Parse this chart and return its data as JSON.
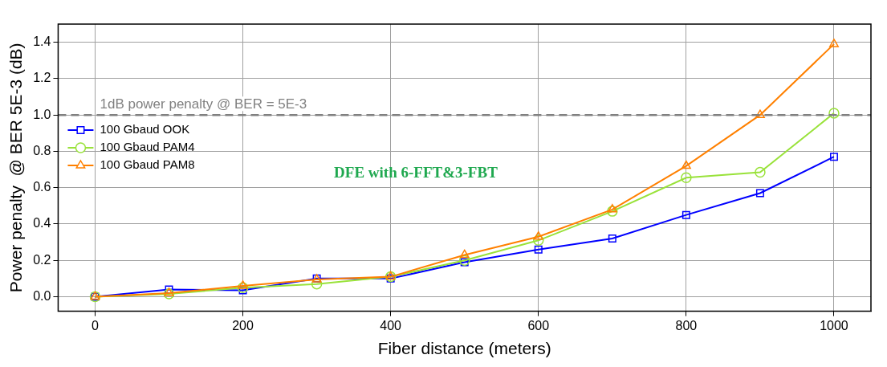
{
  "chart_data": {
    "type": "line",
    "xlabel": "Fiber distance (meters)",
    "ylabel": "Power penalty  @ BER 5E-3 (dB)",
    "x": [
      0,
      100,
      200,
      300,
      400,
      500,
      600,
      700,
      800,
      900,
      1000
    ],
    "series": [
      {
        "name": "100 Gbaud OOK",
        "color": "#0000ff",
        "marker": "square",
        "values": [
          0,
          0.04,
          0.035,
          0.1,
          0.1,
          0.19,
          0.26,
          0.32,
          0.45,
          0.57,
          0.77
        ]
      },
      {
        "name": "100 Gbaud PAM4",
        "color": "#99e23a",
        "marker": "circle",
        "values": [
          0,
          0.015,
          0.05,
          0.07,
          0.11,
          0.2,
          0.31,
          0.47,
          0.655,
          0.685,
          1.01
        ]
      },
      {
        "name": "100 Gbaud PAM8",
        "color": "#ff8000",
        "marker": "triangle",
        "values": [
          0,
          0.02,
          0.06,
          0.095,
          0.11,
          0.23,
          0.33,
          0.48,
          0.72,
          1.0,
          1.39
        ]
      }
    ],
    "xlim": [
      -50,
      1050
    ],
    "xticks": [
      0,
      200,
      400,
      600,
      800,
      1000
    ],
    "ylim": [
      -0.08,
      1.5
    ],
    "yticks": [
      {
        "value": 0,
        "label": "0.0"
      },
      {
        "value": 0.2,
        "label": "0.2"
      },
      {
        "value": 0.4,
        "label": "0.4"
      },
      {
        "value": 0.6,
        "label": "0.6"
      },
      {
        "value": 0.8,
        "label": "0.8"
      },
      {
        "value": 1.0,
        "label": "1.0"
      },
      {
        "value": 1.2,
        "label": "1.2"
      },
      {
        "value": 1.4,
        "label": "1.4"
      }
    ],
    "ref_lines": [
      {
        "axis": "y",
        "value": 1.0,
        "label": "1dB power penalty @ BER = 5E-3",
        "color": "#808080",
        "line_style": "dashed"
      }
    ],
    "annotations": [
      "DFE with 6-FFT&3-FBT"
    ],
    "grid": true,
    "legend": "top left",
    "line_style": "solid"
  }
}
